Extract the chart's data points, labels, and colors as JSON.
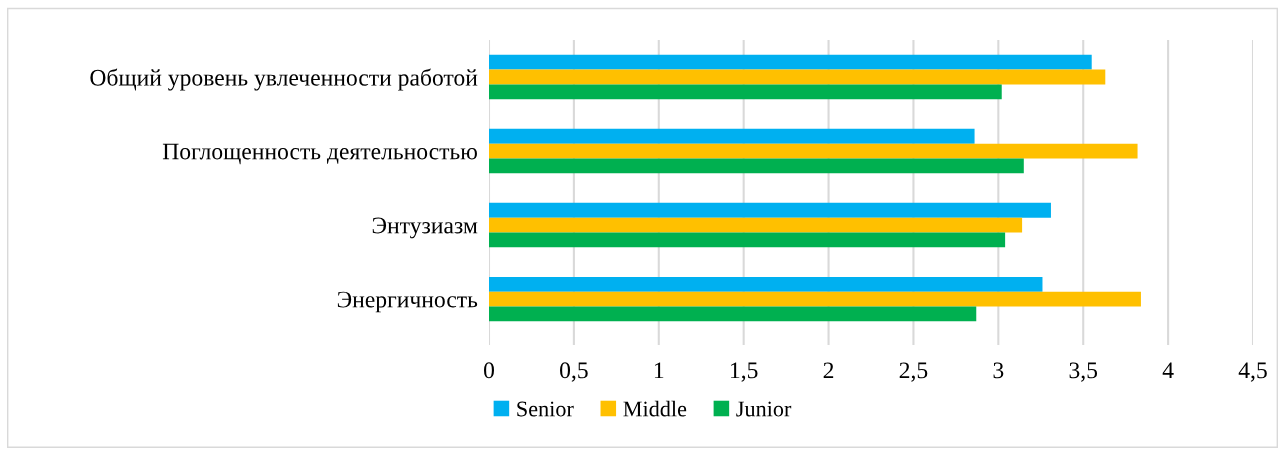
{
  "chart_data": {
    "type": "bar",
    "orientation": "horizontal",
    "categories": [
      "Общий уровень увлеченности работой",
      "Поглощенность деятельностью",
      "Энтузиазм",
      "Энергичность"
    ],
    "series": [
      {
        "name": "Senior",
        "color": "#00b0f0",
        "values": [
          3.55,
          2.86,
          3.31,
          3.26
        ]
      },
      {
        "name": "Middle",
        "color": "#ffc000",
        "values": [
          3.63,
          3.82,
          3.14,
          3.84
        ]
      },
      {
        "name": "Junior",
        "color": "#00b050",
        "values": [
          3.02,
          3.15,
          3.04,
          2.87
        ]
      }
    ],
    "xlim": [
      0,
      4.5
    ],
    "xticks": [
      0,
      {
        "value": 0.5,
        "label": "0,5"
      },
      1,
      {
        "value": 1.5,
        "label": "1,5"
      },
      2,
      {
        "value": 2.5,
        "label": "2,5"
      },
      3,
      {
        "value": 3.5,
        "label": "3,5"
      },
      4,
      {
        "value": 4.5,
        "label": "4,5"
      }
    ],
    "grid": "x",
    "legend": "bottom"
  }
}
